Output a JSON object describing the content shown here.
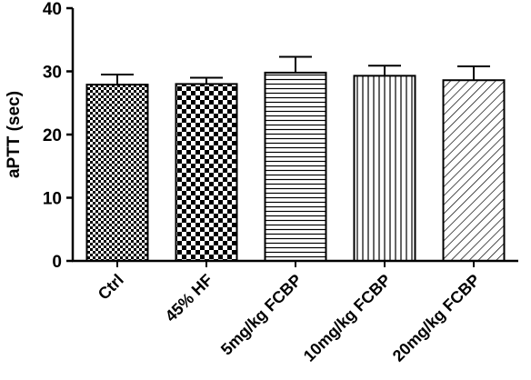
{
  "chart_data": {
    "type": "bar",
    "categories": [
      "Ctrl",
      "45% HF",
      "5mg/kg FCBP",
      "10mg/kg FCBP",
      "20mg/kg FCBP"
    ],
    "series": [
      {
        "values": [
          27.9,
          28.0,
          29.8,
          29.3,
          28.6
        ],
        "error": [
          1.6,
          1.0,
          2.5,
          1.6,
          2.2
        ],
        "patterns": [
          "fine-checker",
          "coarse-checker",
          "horizontal-lines",
          "vertical-lines",
          "diagonal-lines"
        ]
      }
    ],
    "title": "",
    "xlabel": "",
    "ylabel": "aPTT (sec)",
    "ylim": [
      0,
      40
    ],
    "yticks": [
      0,
      10,
      20,
      30,
      40
    ],
    "grid": false,
    "colors": {
      "bar_ink": "#000000",
      "bar_fill": "#ffffff",
      "axis": "#000000"
    }
  }
}
